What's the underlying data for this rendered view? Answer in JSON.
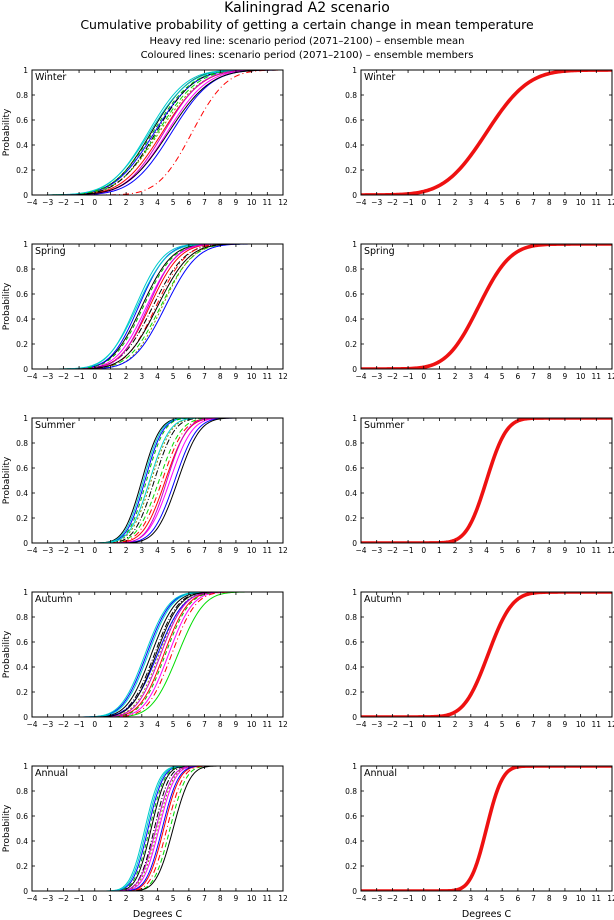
{
  "header": {
    "title": "Kaliningrad A2 scenario",
    "subtitle": "Cumulative probability of getting a certain change in mean temperature",
    "note_mean": "Heavy red line: scenario period (2071–2100) – ensemble mean",
    "note_members": "Coloured lines: scenario period (2071–2100) – ensemble members"
  },
  "colors": {
    "mean": "#ee1111",
    "members": [
      "#000000",
      "#0000ff",
      "#00dd00",
      "#ff0000",
      "#00cccc",
      "#ff00ff",
      "#888800",
      "#000000",
      "#0000ff",
      "#00bb00",
      "#ff0000",
      "#00cccc",
      "#cc00cc",
      "#000000"
    ]
  },
  "chart_data": [
    {
      "type": "line",
      "panel": "members",
      "season": "Winter",
      "title": "Winter",
      "xlabel": "",
      "ylabel": "Probability",
      "xlim": [
        -4,
        12
      ],
      "ylim": [
        0,
        1
      ],
      "xticks": [
        -4,
        -3,
        -2,
        -1,
        0,
        1,
        2,
        3,
        4,
        5,
        6,
        7,
        8,
        9,
        10,
        11,
        12
      ],
      "yticks": [
        0,
        0.2,
        0.4,
        0.6,
        0.8,
        1
      ],
      "series": [
        {
          "name": "member 1",
          "mu": 3.6,
          "sd": 1.9,
          "dash": ""
        },
        {
          "name": "member 2",
          "mu": 3.8,
          "sd": 2.0,
          "dash": ""
        },
        {
          "name": "member 3",
          "mu": 4.0,
          "sd": 2.0,
          "dash": "5,3"
        },
        {
          "name": "member 4",
          "mu": 4.3,
          "sd": 2.0,
          "dash": ""
        },
        {
          "name": "member 5",
          "mu": 3.4,
          "sd": 1.9,
          "dash": ""
        },
        {
          "name": "member 6",
          "mu": 4.6,
          "sd": 2.0,
          "dash": ""
        },
        {
          "name": "member 7",
          "mu": 4.1,
          "sd": 2.1,
          "dash": "2,2"
        },
        {
          "name": "member 8",
          "mu": 3.9,
          "sd": 1.9,
          "dash": "6,2,1,2"
        },
        {
          "name": "member 9",
          "mu": 4.9,
          "sd": 2.0,
          "dash": ""
        },
        {
          "name": "member 10",
          "mu": 3.7,
          "sd": 2.0,
          "dash": "4,3"
        },
        {
          "name": "member 11",
          "mu": 6.2,
          "sd": 1.7,
          "dash": "6,3,1,3"
        },
        {
          "name": "member 12",
          "mu": 3.5,
          "sd": 2.0,
          "dash": ""
        },
        {
          "name": "member 13",
          "mu": 4.4,
          "sd": 1.9,
          "dash": ""
        },
        {
          "name": "member 14",
          "mu": 4.7,
          "sd": 2.1,
          "dash": ""
        }
      ]
    },
    {
      "type": "line",
      "panel": "mean",
      "season": "Winter",
      "title": "Winter",
      "xlabel": "",
      "ylabel": "",
      "xlim": [
        -4,
        12
      ],
      "ylim": [
        0,
        1
      ],
      "xticks": [
        -4,
        -3,
        -2,
        -1,
        0,
        1,
        2,
        3,
        4,
        5,
        6,
        7,
        8,
        9,
        10,
        11,
        12
      ],
      "yticks": [
        0,
        0.2,
        0.4,
        0.6,
        0.8,
        1
      ],
      "series": [
        {
          "name": "ensemble mean",
          "mu": 4.0,
          "sd": 2.1
        }
      ]
    },
    {
      "type": "line",
      "panel": "members",
      "season": "Spring",
      "title": "Spring",
      "xlabel": "",
      "ylabel": "Probability",
      "xlim": [
        -4,
        12
      ],
      "ylim": [
        0,
        1
      ],
      "xticks": [
        -4,
        -3,
        -2,
        -1,
        0,
        1,
        2,
        3,
        4,
        5,
        6,
        7,
        8,
        9,
        10,
        11,
        12
      ],
      "yticks": [
        0,
        0.2,
        0.4,
        0.6,
        0.8,
        1
      ],
      "series": [
        {
          "name": "member 1",
          "mu": 3.0,
          "sd": 1.5,
          "dash": ""
        },
        {
          "name": "member 2",
          "mu": 2.8,
          "sd": 1.4,
          "dash": ""
        },
        {
          "name": "member 3",
          "mu": 4.2,
          "sd": 1.6,
          "dash": "5,3"
        },
        {
          "name": "member 4",
          "mu": 3.5,
          "sd": 1.5,
          "dash": ""
        },
        {
          "name": "member 5",
          "mu": 2.6,
          "sd": 1.4,
          "dash": ""
        },
        {
          "name": "member 6",
          "mu": 3.3,
          "sd": 1.5,
          "dash": ""
        },
        {
          "name": "member 7",
          "mu": 4.3,
          "sd": 1.5,
          "dash": "2,2"
        },
        {
          "name": "member 8",
          "mu": 3.7,
          "sd": 1.6,
          "dash": "6,2,1,2"
        },
        {
          "name": "member 9",
          "mu": 4.5,
          "sd": 1.6,
          "dash": ""
        },
        {
          "name": "member 10",
          "mu": 3.1,
          "sd": 1.5,
          "dash": "4,3"
        },
        {
          "name": "member 11",
          "mu": 3.9,
          "sd": 1.5,
          "dash": "6,3,1,3"
        },
        {
          "name": "member 12",
          "mu": 2.7,
          "sd": 1.5,
          "dash": ""
        },
        {
          "name": "member 13",
          "mu": 3.4,
          "sd": 1.4,
          "dash": ""
        },
        {
          "name": "member 14",
          "mu": 4.0,
          "sd": 1.6,
          "dash": ""
        }
      ]
    },
    {
      "type": "line",
      "panel": "mean",
      "season": "Spring",
      "title": "Spring",
      "xlabel": "",
      "ylabel": "",
      "xlim": [
        -4,
        12
      ],
      "ylim": [
        0,
        1
      ],
      "xticks": [
        -4,
        -3,
        -2,
        -1,
        0,
        1,
        2,
        3,
        4,
        5,
        6,
        7,
        8,
        9,
        10,
        11,
        12
      ],
      "yticks": [
        0,
        0.2,
        0.4,
        0.6,
        0.8,
        1
      ],
      "series": [
        {
          "name": "ensemble mean",
          "mu": 3.5,
          "sd": 1.6
        }
      ]
    },
    {
      "type": "line",
      "panel": "members",
      "season": "Summer",
      "title": "Summer",
      "xlabel": "",
      "ylabel": "Probability",
      "xlim": [
        -4,
        12
      ],
      "ylim": [
        0,
        1
      ],
      "xticks": [
        -4,
        -3,
        -2,
        -1,
        0,
        1,
        2,
        3,
        4,
        5,
        6,
        7,
        8,
        9,
        10,
        11,
        12
      ],
      "yticks": [
        0,
        0.2,
        0.4,
        0.6,
        0.8,
        1
      ],
      "series": [
        {
          "name": "member 1",
          "mu": 3.0,
          "sd": 0.9,
          "dash": ""
        },
        {
          "name": "member 2",
          "mu": 3.2,
          "sd": 0.9,
          "dash": ""
        },
        {
          "name": "member 3",
          "mu": 4.1,
          "sd": 1.1,
          "dash": "5,3"
        },
        {
          "name": "member 4",
          "mu": 4.5,
          "sd": 1.1,
          "dash": ""
        },
        {
          "name": "member 5",
          "mu": 3.1,
          "sd": 0.9,
          "dash": ""
        },
        {
          "name": "member 6",
          "mu": 4.8,
          "sd": 1.1,
          "dash": ""
        },
        {
          "name": "member 7",
          "mu": 3.6,
          "sd": 1.0,
          "dash": "2,2"
        },
        {
          "name": "member 8",
          "mu": 3.8,
          "sd": 1.0,
          "dash": "6,2,1,2"
        },
        {
          "name": "member 9",
          "mu": 5.1,
          "sd": 1.1,
          "dash": ""
        },
        {
          "name": "member 10",
          "mu": 3.3,
          "sd": 0.9,
          "dash": "4,3"
        },
        {
          "name": "member 11",
          "mu": 4.3,
          "sd": 1.1,
          "dash": "6,3,1,3"
        },
        {
          "name": "member 12",
          "mu": 3.5,
          "sd": 1.0,
          "dash": ""
        },
        {
          "name": "member 13",
          "mu": 4.6,
          "sd": 1.0,
          "dash": ""
        },
        {
          "name": "member 14",
          "mu": 5.3,
          "sd": 1.1,
          "dash": ""
        }
      ]
    },
    {
      "type": "line",
      "panel": "mean",
      "season": "Summer",
      "title": "Summer",
      "xlabel": "",
      "ylabel": "",
      "xlim": [
        -4,
        12
      ],
      "ylim": [
        0,
        1
      ],
      "xticks": [
        -4,
        -3,
        -2,
        -1,
        0,
        1,
        2,
        3,
        4,
        5,
        6,
        7,
        8,
        9,
        10,
        11,
        12
      ],
      "yticks": [
        0,
        0.2,
        0.4,
        0.6,
        0.8,
        1
      ],
      "series": [
        {
          "name": "ensemble mean",
          "mu": 4.0,
          "sd": 1.0
        }
      ]
    },
    {
      "type": "line",
      "panel": "members",
      "season": "Autumn",
      "title": "Autumn",
      "xlabel": "",
      "ylabel": "Probability",
      "xlim": [
        -4,
        12
      ],
      "ylim": [
        0,
        1
      ],
      "xticks": [
        -4,
        -3,
        -2,
        -1,
        0,
        1,
        2,
        3,
        4,
        5,
        6,
        7,
        8,
        9,
        10,
        11,
        12
      ],
      "yticks": [
        0,
        0.2,
        0.4,
        0.6,
        0.8,
        1
      ],
      "series": [
        {
          "name": "member 1",
          "mu": 3.6,
          "sd": 1.2,
          "dash": ""
        },
        {
          "name": "member 2",
          "mu": 3.3,
          "sd": 1.2,
          "dash": ""
        },
        {
          "name": "member 3",
          "mu": 5.3,
          "sd": 1.3,
          "dash": ""
        },
        {
          "name": "member 4",
          "mu": 4.4,
          "sd": 1.2,
          "dash": ""
        },
        {
          "name": "member 5",
          "mu": 3.2,
          "sd": 1.2,
          "dash": ""
        },
        {
          "name": "member 6",
          "mu": 4.7,
          "sd": 1.2,
          "dash": ""
        },
        {
          "name": "member 7",
          "mu": 4.1,
          "sd": 1.2,
          "dash": "2,2"
        },
        {
          "name": "member 8",
          "mu": 3.8,
          "sd": 1.2,
          "dash": "6,2,1,2"
        },
        {
          "name": "member 9",
          "mu": 4.0,
          "sd": 1.3,
          "dash": ""
        },
        {
          "name": "member 10",
          "mu": 4.5,
          "sd": 1.2,
          "dash": "4,3"
        },
        {
          "name": "member 11",
          "mu": 4.9,
          "sd": 1.2,
          "dash": "6,3,1,3"
        },
        {
          "name": "member 12",
          "mu": 3.4,
          "sd": 1.2,
          "dash": ""
        },
        {
          "name": "member 13",
          "mu": 4.2,
          "sd": 1.2,
          "dash": ""
        },
        {
          "name": "member 14",
          "mu": 3.9,
          "sd": 1.2,
          "dash": ""
        }
      ]
    },
    {
      "type": "line",
      "panel": "mean",
      "season": "Autumn",
      "title": "Autumn",
      "xlabel": "",
      "ylabel": "",
      "xlim": [
        -4,
        12
      ],
      "ylim": [
        0,
        1
      ],
      "xticks": [
        -4,
        -3,
        -2,
        -1,
        0,
        1,
        2,
        3,
        4,
        5,
        6,
        7,
        8,
        9,
        10,
        11,
        12
      ],
      "yticks": [
        0,
        0.2,
        0.4,
        0.6,
        0.8,
        1
      ],
      "series": [
        {
          "name": "ensemble mean",
          "mu": 4.1,
          "sd": 1.2
        }
      ]
    },
    {
      "type": "line",
      "panel": "members",
      "season": "Annual",
      "title": "Annual",
      "xlabel": "Degrees C",
      "ylabel": "Probability",
      "xlim": [
        -4,
        12
      ],
      "ylim": [
        0,
        1
      ],
      "xticks": [
        -4,
        -3,
        -2,
        -1,
        0,
        1,
        2,
        3,
        4,
        5,
        6,
        7,
        8,
        9,
        10,
        11,
        12
      ],
      "yticks": [
        0,
        0.2,
        0.4,
        0.6,
        0.8,
        1
      ],
      "series": [
        {
          "name": "member 1",
          "mu": 3.6,
          "sd": 0.75,
          "dash": ""
        },
        {
          "name": "member 2",
          "mu": 3.4,
          "sd": 0.75,
          "dash": ""
        },
        {
          "name": "member 3",
          "mu": 4.8,
          "sd": 0.8,
          "dash": "5,3"
        },
        {
          "name": "member 4",
          "mu": 4.4,
          "sd": 0.8,
          "dash": ""
        },
        {
          "name": "member 5",
          "mu": 3.2,
          "sd": 0.75,
          "dash": ""
        },
        {
          "name": "member 6",
          "mu": 4.1,
          "sd": 0.8,
          "dash": ""
        },
        {
          "name": "member 7",
          "mu": 4.0,
          "sd": 0.8,
          "dash": "2,2"
        },
        {
          "name": "member 8",
          "mu": 3.8,
          "sd": 0.75,
          "dash": "6,2,1,2"
        },
        {
          "name": "member 9",
          "mu": 4.3,
          "sd": 0.8,
          "dash": ""
        },
        {
          "name": "member 10",
          "mu": 3.5,
          "sd": 0.75,
          "dash": "4,3"
        },
        {
          "name": "member 11",
          "mu": 4.6,
          "sd": 0.8,
          "dash": "6,3,1,3"
        },
        {
          "name": "member 12",
          "mu": 3.3,
          "sd": 0.75,
          "dash": ""
        },
        {
          "name": "member 13",
          "mu": 3.9,
          "sd": 0.8,
          "dash": ""
        },
        {
          "name": "member 14",
          "mu": 5.0,
          "sd": 0.85,
          "dash": ""
        }
      ]
    },
    {
      "type": "line",
      "panel": "mean",
      "season": "Annual",
      "title": "Annual",
      "xlabel": "Degrees C",
      "ylabel": "",
      "xlim": [
        -4,
        12
      ],
      "ylim": [
        0,
        1
      ],
      "xticks": [
        -4,
        -3,
        -2,
        -1,
        0,
        1,
        2,
        3,
        4,
        5,
        6,
        7,
        8,
        9,
        10,
        11,
        12
      ],
      "yticks": [
        0,
        0.2,
        0.4,
        0.6,
        0.8,
        1
      ],
      "series": [
        {
          "name": "ensemble mean",
          "mu": 4.0,
          "sd": 0.8
        }
      ]
    }
  ]
}
